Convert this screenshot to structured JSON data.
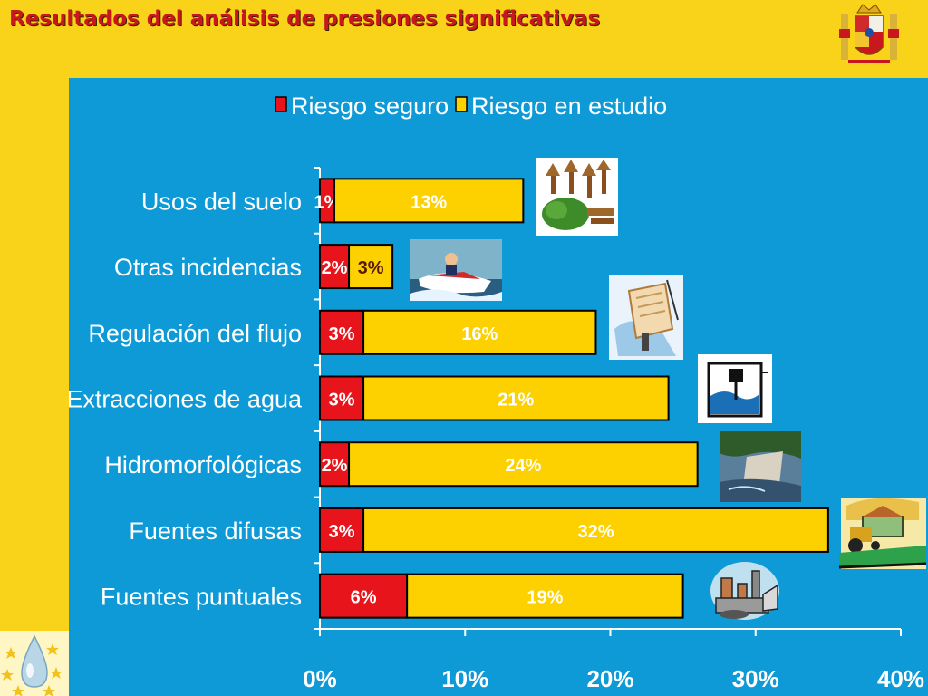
{
  "slide": {
    "title": "Resultados del análisis de presiones significativas"
  },
  "icons": {
    "coat_of_arms": "spain-coat-of-arms-icon",
    "eu_logo": "eu-water-drop-logo-icon",
    "clipart": [
      "forest-clipart-icon",
      "jetski-clipart-icon",
      "fishing-clipart-icon",
      "water-pump-clipart-icon",
      "dam-clipart-icon",
      "farm-tractor-clipart-icon",
      "factory-clipart-icon"
    ]
  },
  "colors": {
    "background": "#f9d21a",
    "panel": "#0e9ad6",
    "safe": "#e8141c",
    "study": "#fdd000",
    "title": "#c8181e"
  },
  "chart_data": {
    "type": "bar",
    "orientation": "horizontal",
    "stacked": true,
    "categories": [
      "Usos del suelo",
      "Otras incidencias",
      "Regulación del flujo",
      "Extracciones de agua",
      "Hidromorfológicas",
      "Fuentes difusas",
      "Fuentes puntuales"
    ],
    "series": [
      {
        "name": "Riesgo seguro",
        "color": "#e8141c",
        "values": [
          1,
          2,
          3,
          3,
          2,
          3,
          6
        ],
        "labels": [
          "1%",
          "2%",
          "3%",
          "3%",
          "2%",
          "3%",
          "6%"
        ]
      },
      {
        "name": "Riesgo en estudio",
        "color": "#fdd000",
        "values": [
          13,
          3,
          16,
          21,
          24,
          32,
          19
        ],
        "labels": [
          "13%",
          "3%",
          "16%",
          "21%",
          "24%",
          "32%",
          "19%"
        ]
      }
    ],
    "xlim": [
      0,
      40
    ],
    "xticks": [
      0,
      10,
      20,
      30,
      40
    ],
    "xtick_labels": [
      "0%",
      "10%",
      "20%",
      "30%",
      "40%"
    ],
    "legend_position": "top",
    "grid": false
  }
}
